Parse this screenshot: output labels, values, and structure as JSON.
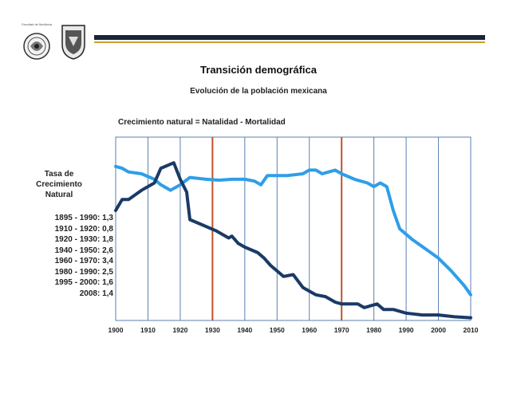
{
  "logo": {
    "left_text": "Facultad de Medicina"
  },
  "title": "Transición demográfica",
  "subtitle": "Evolución de la población mexicana",
  "chart_note": "Crecimiento natural = Natalidad - Mortalidad",
  "rate_panel": {
    "heading": [
      "Tasa de",
      "Crecimiento",
      "Natural"
    ],
    "items": [
      "1895 - 1990: 1,3",
      "1910 - 1920: 0,8",
      "1920 - 1930: 1,8",
      "1940 - 1950: 2,6",
      "1960 - 1970: 3,4",
      "1980 - 1990: 2,5",
      "1995 - 2000: 1,6",
      "2008: 1,4"
    ]
  },
  "colors": {
    "header_bar": "#1a2438",
    "header_accent": "#c9a033",
    "grid": "#5b7fb5",
    "highlight": "#c0522a",
    "series_light": "#2f9ee8",
    "series_dark": "#1a3a66"
  },
  "chart_data": {
    "type": "line",
    "x_ticks": [
      1900,
      1910,
      1920,
      1930,
      1940,
      1950,
      1960,
      1970,
      1980,
      1990,
      2000,
      2010
    ],
    "xlim": [
      1900,
      2010
    ],
    "ylim": [
      0,
      100
    ],
    "y_axis_labels": false,
    "grid": "vertical",
    "highlight_years": [
      1930,
      1970
    ],
    "series": [
      {
        "color_key": "series_light",
        "points": [
          [
            1900,
            84
          ],
          [
            1902,
            83
          ],
          [
            1904,
            81
          ],
          [
            1908,
            80
          ],
          [
            1912,
            77
          ],
          [
            1914,
            74
          ],
          [
            1917,
            71
          ],
          [
            1920,
            74
          ],
          [
            1923,
            78
          ],
          [
            1928,
            77
          ],
          [
            1932,
            76.5
          ],
          [
            1936,
            77
          ],
          [
            1940,
            77
          ],
          [
            1943,
            76
          ],
          [
            1945,
            74
          ],
          [
            1947,
            79
          ],
          [
            1953,
            79
          ],
          [
            1958,
            80
          ],
          [
            1960,
            82
          ],
          [
            1962,
            82
          ],
          [
            1964,
            80
          ],
          [
            1966,
            81
          ],
          [
            1968,
            82
          ],
          [
            1970,
            80
          ],
          [
            1974,
            77
          ],
          [
            1978,
            75
          ],
          [
            1980,
            73
          ],
          [
            1982,
            75
          ],
          [
            1984,
            73
          ],
          [
            1986,
            60
          ],
          [
            1988,
            50
          ],
          [
            1992,
            44
          ],
          [
            1996,
            39
          ],
          [
            2000,
            34
          ],
          [
            2004,
            27
          ],
          [
            2008,
            19
          ],
          [
            2010,
            14
          ]
        ]
      },
      {
        "color_key": "series_dark",
        "points": [
          [
            1900,
            60
          ],
          [
            1902,
            66
          ],
          [
            1904,
            66
          ],
          [
            1908,
            71
          ],
          [
            1912,
            75
          ],
          [
            1914,
            83
          ],
          [
            1918,
            86
          ],
          [
            1920,
            77
          ],
          [
            1922,
            70
          ],
          [
            1923,
            55
          ],
          [
            1927,
            52
          ],
          [
            1931,
            49
          ],
          [
            1933,
            47
          ],
          [
            1935,
            45
          ],
          [
            1936,
            46
          ],
          [
            1938,
            42
          ],
          [
            1940,
            40
          ],
          [
            1944,
            37
          ],
          [
            1946,
            34
          ],
          [
            1948,
            30
          ],
          [
            1952,
            24
          ],
          [
            1955,
            25
          ],
          [
            1958,
            18
          ],
          [
            1962,
            14
          ],
          [
            1965,
            13
          ],
          [
            1968,
            10
          ],
          [
            1970,
            9
          ],
          [
            1975,
            9
          ],
          [
            1977,
            7
          ],
          [
            1979,
            8
          ],
          [
            1981,
            9
          ],
          [
            1983,
            6
          ],
          [
            1986,
            6
          ],
          [
            1990,
            4
          ],
          [
            1995,
            3
          ],
          [
            2000,
            3
          ],
          [
            2005,
            2
          ],
          [
            2010,
            1.5
          ]
        ]
      }
    ]
  }
}
